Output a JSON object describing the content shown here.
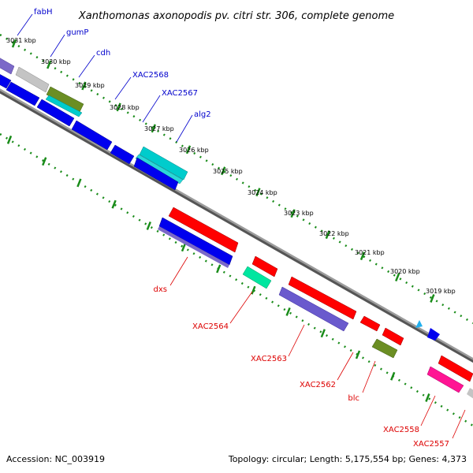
{
  "title": "Xanthomonas axonopodis pv. citri str. 306, complete genome",
  "footer": {
    "accession": "Accession: NC_003919",
    "summary": "Topology: circular; Length: 5,175,554 bp; Genes: 4,373"
  },
  "ticks": [
    {
      "label": "3031 kbp",
      "kbp": 3031
    },
    {
      "label": "3030 kbp",
      "kbp": 3030
    },
    {
      "label": "3029 kbp",
      "kbp": 3029
    },
    {
      "label": "3028 kbp",
      "kbp": 3028
    },
    {
      "label": "3027 kbp",
      "kbp": 3027
    },
    {
      "label": "3026 kbp",
      "kbp": 3026
    },
    {
      "label": "3025 kbp",
      "kbp": 3025
    },
    {
      "label": "3024 kbp",
      "kbp": 3024
    },
    {
      "label": "3023 kbp",
      "kbp": 3023
    },
    {
      "label": "3022 kbp",
      "kbp": 3022
    },
    {
      "label": "3021 kbp",
      "kbp": 3021
    },
    {
      "label": "3020 kbp",
      "kbp": 3020
    },
    {
      "label": "3019 kbp",
      "kbp": 3019
    }
  ],
  "genes_forward": [
    {
      "name": "fabH",
      "color": "#7b68c8"
    },
    {
      "name": "gumP",
      "color": "#b8b8b8"
    },
    {
      "name": "cdh",
      "color": "#6b8e23"
    },
    {
      "name": "XAC2568",
      "color": "#0000ee"
    },
    {
      "name": "XAC2567",
      "color": "#0000ee"
    },
    {
      "name": "alg2",
      "color": "#00cccc"
    }
  ],
  "genes_reverse": [
    {
      "name": "dxs",
      "color": "#ff0000"
    },
    {
      "name": "XAC2564",
      "color": "#00e6a0"
    },
    {
      "name": "XAC2563",
      "color": "#6a5acd"
    },
    {
      "name": "XAC2562",
      "color": "#ff0000"
    },
    {
      "name": "blc",
      "color": "#6b8e23"
    },
    {
      "name": "XAC2558",
      "color": "#ff1493"
    },
    {
      "name": "XAC2557",
      "color": "#b8b8b8"
    }
  ],
  "colors": {
    "backbone": "#8c8c8c",
    "tick": "#1a8c1a",
    "forward_label": "#0000cc",
    "reverse_label": "#dd0000"
  }
}
